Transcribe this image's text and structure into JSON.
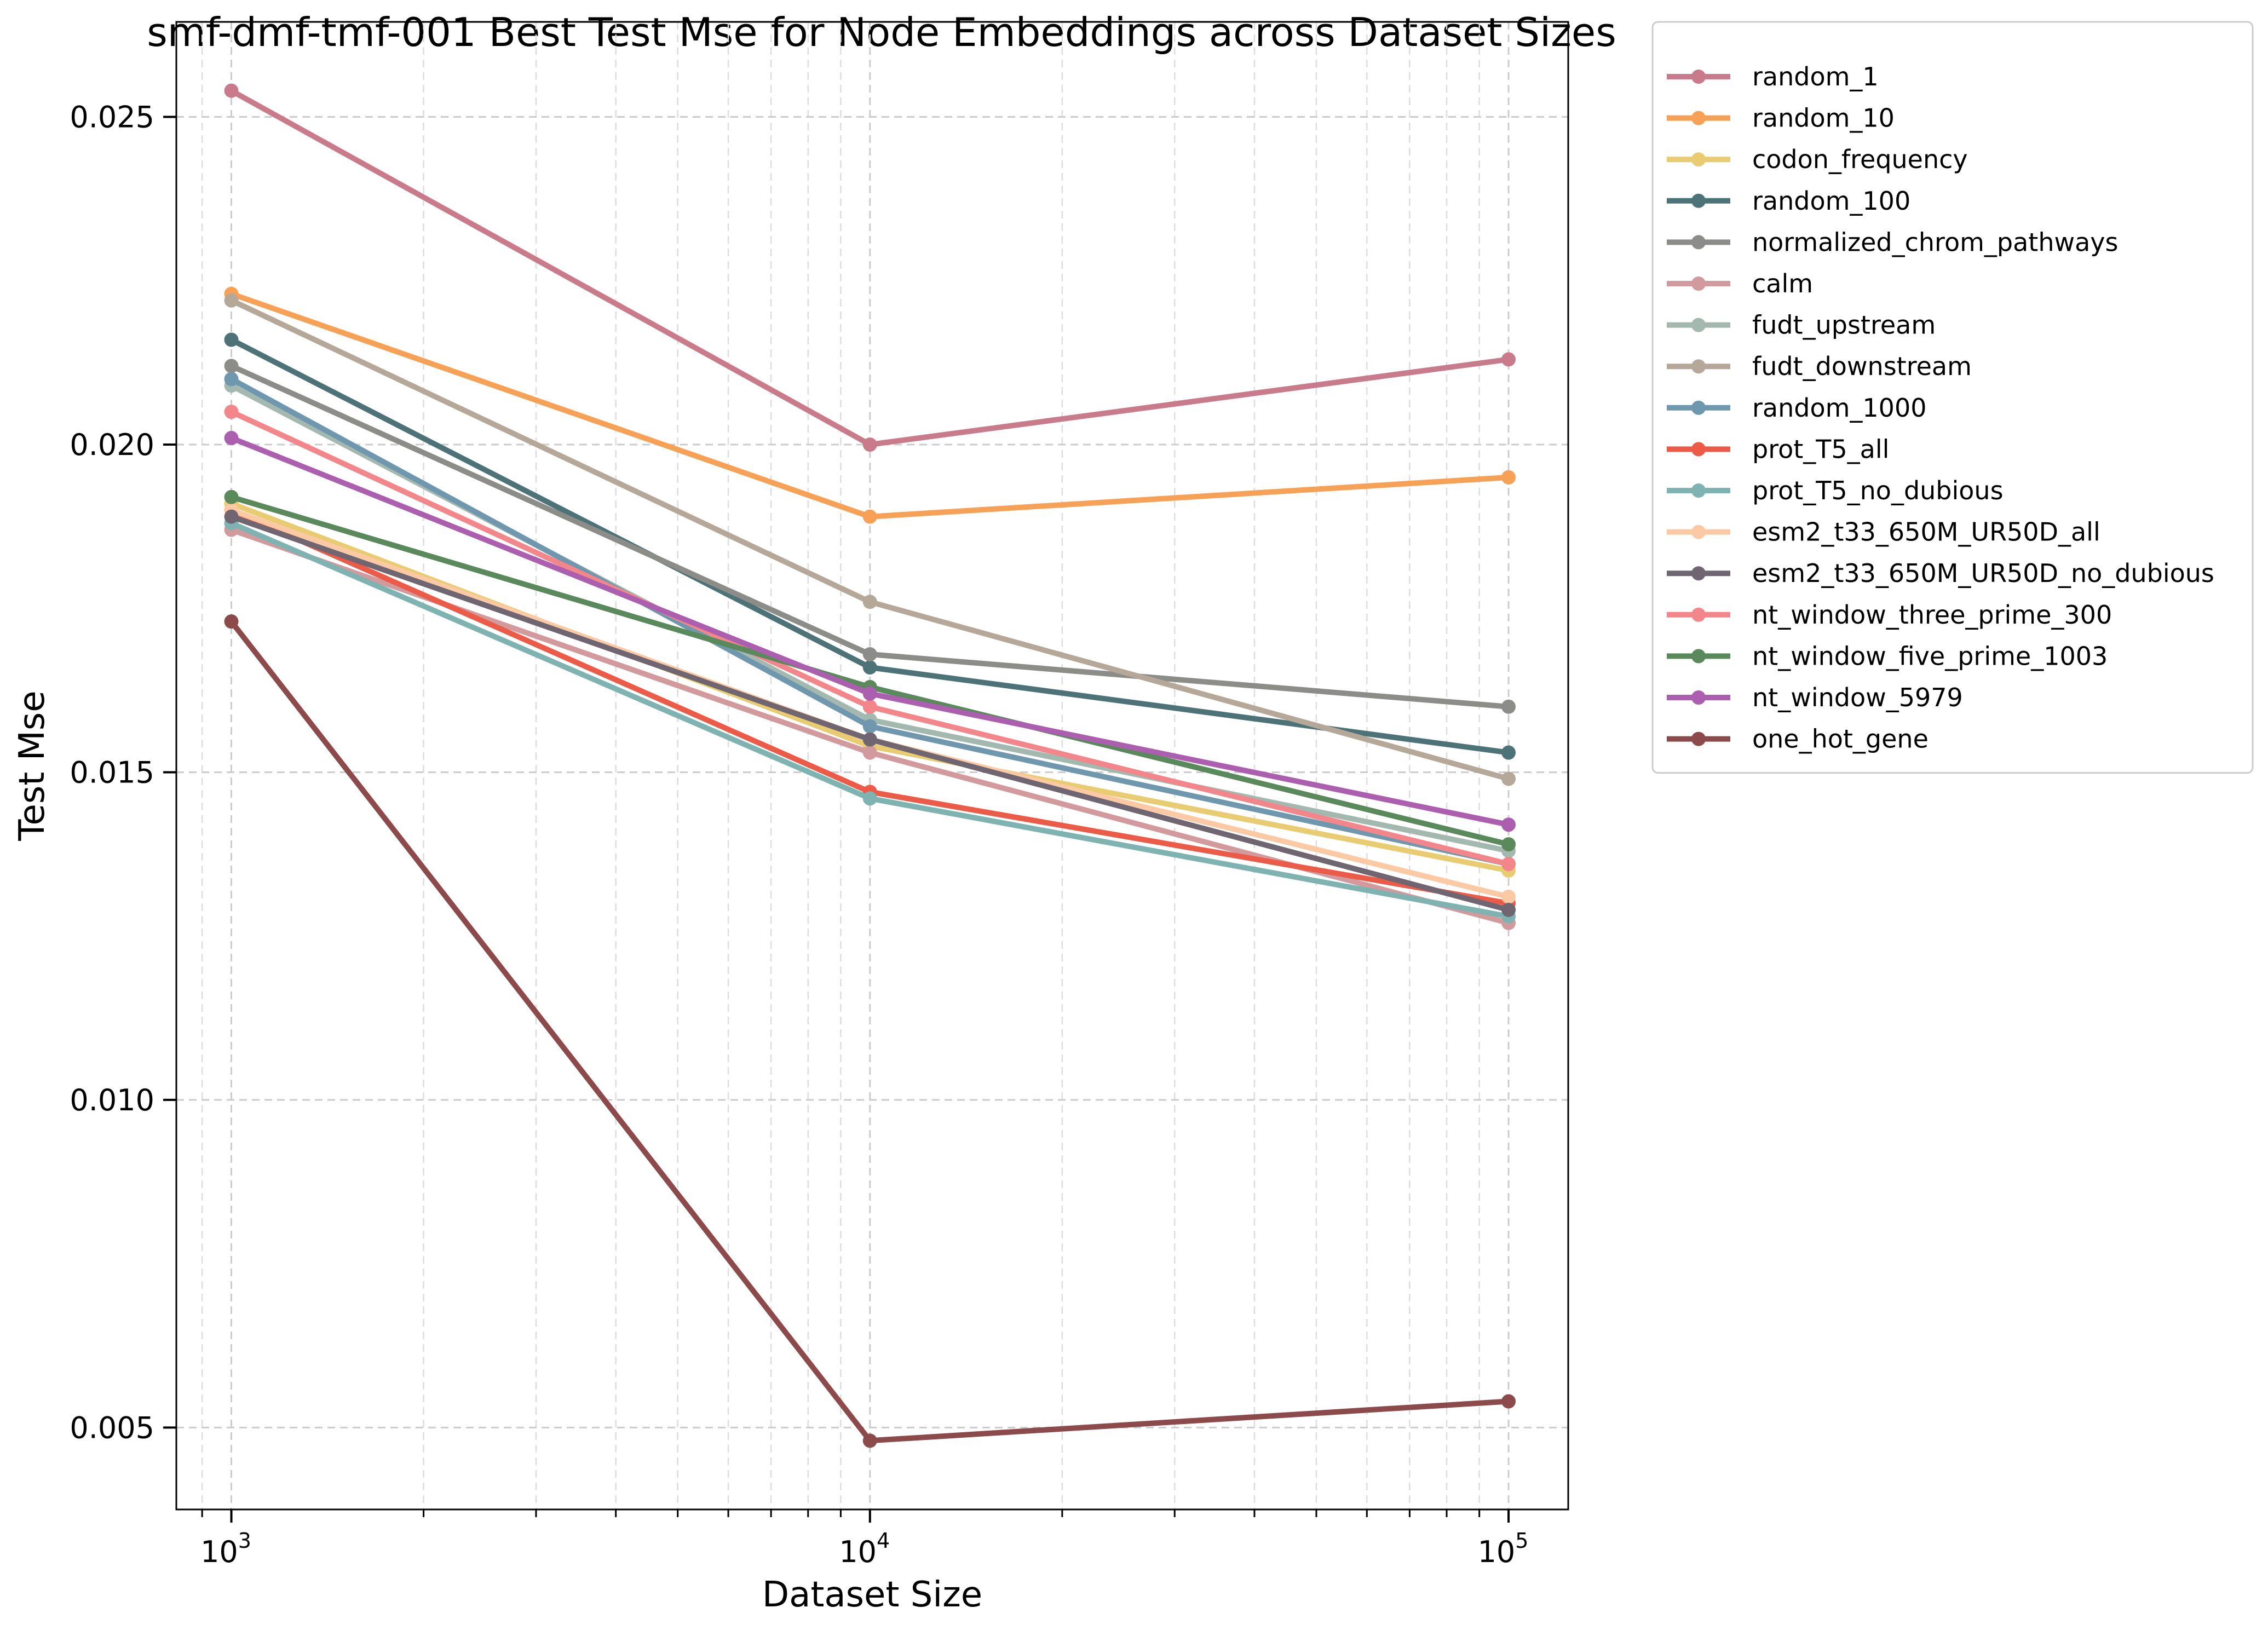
{
  "chart_data": {
    "type": "line",
    "title": "smf-dmf-tmf-001 Best Test Mse for Node Embeddings across Dataset Sizes",
    "xlabel": "Dataset Size",
    "ylabel": "Test Mse",
    "xscale": "log",
    "x": [
      1000,
      10000,
      100000
    ],
    "xlim": [
      820,
      124000
    ],
    "ylim": [
      0.00375,
      0.02645
    ],
    "xticks": [
      {
        "value": 1000,
        "base": "10",
        "exp": "3"
      },
      {
        "value": 10000,
        "base": "10",
        "exp": "4"
      },
      {
        "value": 100000,
        "base": "10",
        "exp": "5"
      }
    ],
    "yticks": [
      {
        "value": 0.005,
        "label": "0.005"
      },
      {
        "value": 0.01,
        "label": "0.010"
      },
      {
        "value": 0.015,
        "label": "0.015"
      },
      {
        "value": 0.02,
        "label": "0.020"
      },
      {
        "value": 0.025,
        "label": "0.025"
      }
    ],
    "grid": true,
    "legend_position": "outside-right",
    "series": [
      {
        "name": "random_1",
        "color": "#c97b8b",
        "values": [
          0.0254,
          0.02,
          0.0213
        ]
      },
      {
        "name": "random_10",
        "color": "#f7a156",
        "values": [
          0.0223,
          0.0189,
          0.0195
        ]
      },
      {
        "name": "codon_frequency",
        "color": "#e9cc72",
        "values": [
          0.0191,
          0.0154,
          0.0135
        ]
      },
      {
        "name": "random_100",
        "color": "#4d7278",
        "values": [
          0.0216,
          0.0166,
          0.0153
        ]
      },
      {
        "name": "normalized_chrom_pathways",
        "color": "#8c8c88",
        "values": [
          0.0212,
          0.0168,
          0.016
        ]
      },
      {
        "name": "calm",
        "color": "#d39a9e",
        "values": [
          0.0187,
          0.0153,
          0.0127
        ]
      },
      {
        "name": "fudt_upstream",
        "color": "#a3b8ae",
        "values": [
          0.0209,
          0.0158,
          0.0138
        ]
      },
      {
        "name": "fudt_downstream",
        "color": "#b5a898",
        "values": [
          0.0222,
          0.0176,
          0.0149
        ]
      },
      {
        "name": "random_1000",
        "color": "#6f97ad",
        "values": [
          0.021,
          0.0157,
          0.0136
        ]
      },
      {
        "name": "prot_T5_all",
        "color": "#ec5a48",
        "values": [
          0.019,
          0.0147,
          0.013
        ]
      },
      {
        "name": "prot_T5_no_dubious",
        "color": "#7fb3b1",
        "values": [
          0.0188,
          0.0146,
          0.0128
        ]
      },
      {
        "name": "esm2_t33_650M_UR50D_all",
        "color": "#fbcaa4",
        "values": [
          0.019,
          0.0155,
          0.0131
        ]
      },
      {
        "name": "esm2_t33_650M_UR50D_no_dubious",
        "color": "#6f6672",
        "values": [
          0.0189,
          0.0155,
          0.0129
        ]
      },
      {
        "name": "nt_window_three_prime_300",
        "color": "#f2868a",
        "values": [
          0.0205,
          0.016,
          0.0136
        ]
      },
      {
        "name": "nt_window_five_prime_1003",
        "color": "#5a8a5c",
        "values": [
          0.0192,
          0.0163,
          0.0139
        ]
      },
      {
        "name": "nt_window_5979",
        "color": "#ac5fae",
        "values": [
          0.0201,
          0.0162,
          0.0142
        ]
      },
      {
        "name": "one_hot_gene",
        "color": "#8c4a4a",
        "values": [
          0.0173,
          0.0048,
          0.0054
        ]
      }
    ]
  }
}
